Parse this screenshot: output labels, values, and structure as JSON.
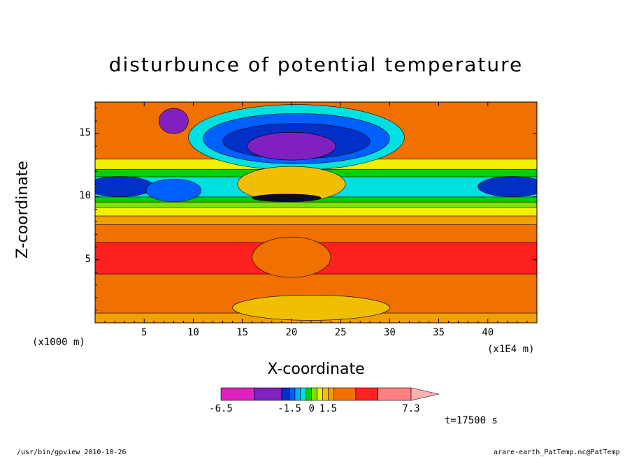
{
  "chart_data": {
    "type": "heatmap",
    "title": "disturbunce of potential temperature",
    "xlabel": "X-coordinate",
    "ylabel": "Z-coordinate",
    "x_unit_label": "(x1000 m)",
    "x_scale_label": "(x1E4 m)",
    "xlim": [
      0,
      45
    ],
    "ylim": [
      0,
      17.5
    ],
    "x_ticks": [
      5,
      10,
      15,
      20,
      25,
      30,
      35,
      40
    ],
    "x_tick_labels": [
      "5",
      "10",
      "15",
      "20",
      "25",
      "30",
      "35",
      "40"
    ],
    "y_ticks": [
      5,
      10,
      15
    ],
    "y_tick_labels": [
      "5",
      "10",
      "15"
    ],
    "colorbar": {
      "labels": [
        "-6.5",
        "-1.5",
        "0",
        "1.5",
        "7.3"
      ],
      "colors": [
        "#e020c0",
        "#8020c0",
        "#0030c8",
        "#0060ff",
        "#00b0ff",
        "#00e0e0",
        "#00d000",
        "#80e000",
        "#f0f000",
        "#f0c000",
        "#f0a000",
        "#f07000",
        "#ff2020",
        "#ff8080",
        "#ffb0b0"
      ],
      "extend": "right"
    },
    "bands": [
      {
        "z0": 0,
        "z1": 0.8,
        "color": "#f0a000"
      },
      {
        "z0": 0.8,
        "z1": 3.9,
        "color": "#f07000"
      },
      {
        "z0": 3.9,
        "z1": 6.4,
        "color": "#ff2020"
      },
      {
        "z0": 6.4,
        "z1": 7.8,
        "color": "#f07000"
      },
      {
        "z0": 7.8,
        "z1": 8.5,
        "color": "#f0a000"
      },
      {
        "z0": 8.5,
        "z1": 9.2,
        "color": "#f0f000"
      },
      {
        "z0": 9.2,
        "z1": 9.6,
        "color": "#80e000"
      },
      {
        "z0": 9.6,
        "z1": 10.0,
        "color": "#00d000"
      },
      {
        "z0": 10.0,
        "z1": 11.6,
        "color": "#00e0e0"
      },
      {
        "z0": 11.6,
        "z1": 12.2,
        "color": "#00d000"
      },
      {
        "z0": 12.2,
        "z1": 13.0,
        "color": "#f0f000"
      },
      {
        "z0": 13.0,
        "z1": 17.5,
        "color": "#f07000"
      }
    ],
    "blobs": [
      {
        "x": 2.5,
        "z": 10.8,
        "rx": 3.5,
        "rz": 0.8,
        "color": "#0030c8"
      },
      {
        "x": 8.0,
        "z": 10.5,
        "rx": 2.8,
        "rz": 0.9,
        "color": "#0060ff"
      },
      {
        "x": 42.5,
        "z": 10.8,
        "rx": 3.5,
        "rz": 0.8,
        "color": "#0030c8"
      },
      {
        "x": 20.5,
        "z": 14.7,
        "rx": 11.0,
        "rz": 2.6,
        "color": "#00e0e0"
      },
      {
        "x": 20.5,
        "z": 14.6,
        "rx": 9.5,
        "rz": 2.0,
        "color": "#0060ff"
      },
      {
        "x": 20.5,
        "z": 14.4,
        "rx": 7.5,
        "rz": 1.4,
        "color": "#0030c8"
      },
      {
        "x": 20.0,
        "z": 14.0,
        "rx": 4.5,
        "rz": 1.1,
        "color": "#8020c0"
      },
      {
        "x": 8.0,
        "z": 16.0,
        "rx": 1.5,
        "rz": 1.0,
        "color": "#8020c0"
      },
      {
        "x": 20.0,
        "z": 11.0,
        "rx": 5.5,
        "rz": 1.4,
        "color": "#f0c000"
      },
      {
        "x": 19.5,
        "z": 9.9,
        "rx": 3.5,
        "rz": 0.3,
        "color": "#0a0a30"
      },
      {
        "x": 20.0,
        "z": 5.2,
        "rx": 4.0,
        "rz": 1.6,
        "color": "#f07000"
      },
      {
        "x": 22.0,
        "z": 1.2,
        "rx": 8.0,
        "rz": 1.0,
        "color": "#f0c000"
      }
    ]
  },
  "footer": {
    "left": "/usr/bin/gpview  2010-10-26",
    "right": "arare-earth_PatTemp.nc@PatTemp",
    "time": "t=17500 s"
  }
}
